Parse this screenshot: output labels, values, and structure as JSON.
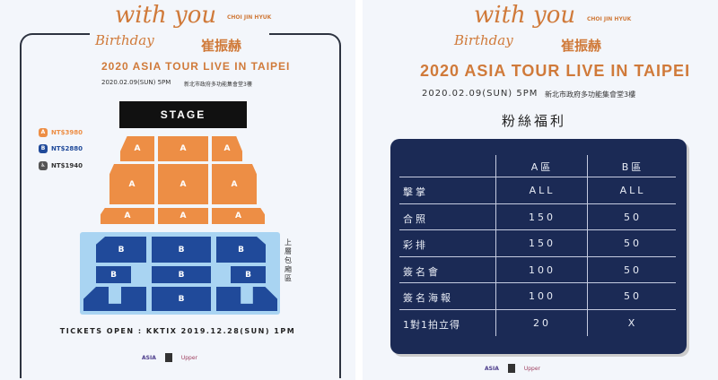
{
  "header": {
    "script_with_you": "with you",
    "script_birthday": "Birthday",
    "artist_en": "CHOI JIN HYUK",
    "artist_zh": "崔振赫",
    "tour_title": "2020 ASIA TOUR LIVE IN TAIPEI",
    "datetime": "2020.02.09(SUN) 5PM",
    "venue": "新北市政府多功能集會堂3樓"
  },
  "seatmap": {
    "stage_label": "STAGE",
    "section_a": "A",
    "section_b": "B",
    "upper_box_label": "上層包廂區",
    "legend": [
      {
        "badge": "A",
        "price": "NT$3980",
        "color": "#ed8e45"
      },
      {
        "badge": "B",
        "price": "NT$2880",
        "color": "#204a9a"
      },
      {
        "badge": "♿",
        "price": "NT$1940",
        "color": "#555555"
      }
    ],
    "tickets_open": "TICKETS OPEN : KKTIX 2019.12.28(SUN) 1PM"
  },
  "benefits": {
    "title": "粉絲福利",
    "columns": [
      "",
      "A區",
      "B區"
    ],
    "rows": [
      [
        "擊掌",
        "ALL",
        "ALL"
      ],
      [
        "合照",
        "150",
        "50"
      ],
      [
        "彩排",
        "150",
        "50"
      ],
      [
        "簽名會",
        "100",
        "50"
      ],
      [
        "簽名海報",
        "100",
        "50"
      ],
      [
        "1對1拍立得",
        "20",
        "X"
      ]
    ]
  },
  "logos": {
    "asia": "ASIA",
    "upper": "Upper"
  },
  "colors": {
    "accent": "#d07a3a",
    "table_bg": "#1b2a55",
    "section_a": "#ed8e45",
    "section_b": "#204a9a",
    "box": "#a9d4f2"
  }
}
